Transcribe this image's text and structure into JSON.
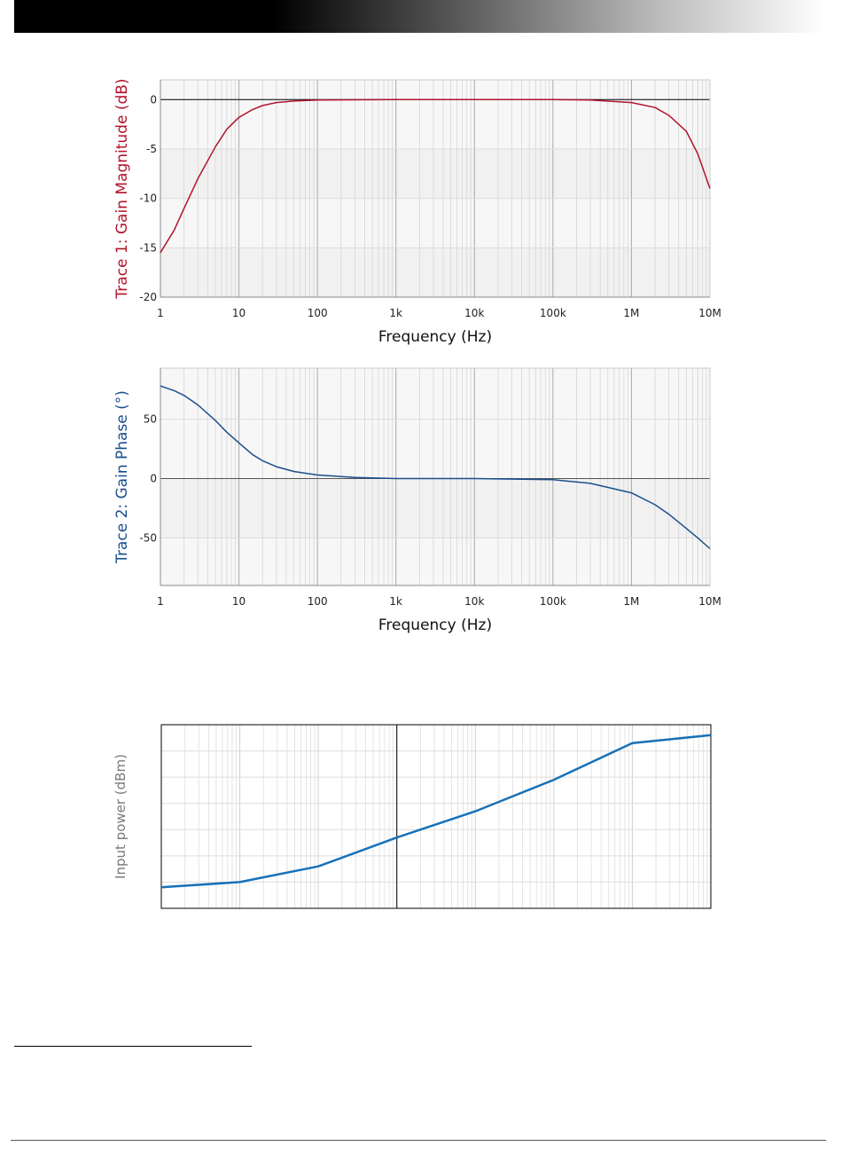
{
  "chart_data": [
    {
      "type": "line",
      "title": "",
      "xlabel": "Frequency (Hz)",
      "ylabel": "Trace 1: Gain Magnitude (dB)",
      "xscale": "log",
      "xlim": [
        1,
        10000000
      ],
      "ylim": [
        -20,
        2
      ],
      "xticks": [
        1,
        10,
        100,
        1000,
        10000,
        100000,
        1000000,
        10000000
      ],
      "xtick_labels": [
        "1",
        "10",
        "100",
        "1k",
        "10k",
        "100k",
        "1M",
        "10M"
      ],
      "yticks": [
        -20,
        -15,
        -10,
        -5,
        0
      ],
      "ytick_labels": [
        "-20",
        "-15",
        "-10",
        "-5",
        "0"
      ],
      "grid": true,
      "color": "#b0142b",
      "series": [
        {
          "x": [
            1,
            1.5,
            2,
            3,
            5,
            7,
            10,
            15,
            20,
            30,
            50,
            100,
            1000,
            10000,
            100000,
            300000,
            1000000,
            2000000,
            3000000,
            5000000,
            7000000,
            10000000
          ],
          "y": [
            -15.5,
            -13.2,
            -11,
            -8,
            -4.8,
            -3,
            -1.8,
            -1,
            -0.6,
            -0.3,
            -0.15,
            -0.05,
            0,
            0,
            0,
            -0.05,
            -0.3,
            -0.8,
            -1.6,
            -3.2,
            -5.5,
            -9
          ]
        }
      ]
    },
    {
      "type": "line",
      "title": "",
      "xlabel": "Frequency (Hz)",
      "ylabel": "Trace 2: Gain Phase (°)",
      "xscale": "log",
      "xlim": [
        1,
        10000000
      ],
      "ylim": [
        -90,
        93
      ],
      "xticks": [
        1,
        10,
        100,
        1000,
        10000,
        100000,
        1000000,
        10000000
      ],
      "xtick_labels": [
        "1",
        "10",
        "100",
        "1k",
        "10k",
        "100k",
        "1M",
        "10M"
      ],
      "yticks": [
        -50,
        0,
        50
      ],
      "ytick_labels": [
        "-50",
        "0",
        "50"
      ],
      "grid": true,
      "color": "#1a4f8c",
      "series": [
        {
          "x": [
            1,
            1.5,
            2,
            3,
            5,
            7,
            10,
            15,
            20,
            30,
            50,
            100,
            300,
            1000,
            10000,
            100000,
            300000,
            1000000,
            2000000,
            3000000,
            5000000,
            7000000,
            10000000
          ],
          "y": [
            78,
            74,
            70,
            62,
            49,
            39,
            30,
            20,
            15,
            10,
            6,
            3,
            1,
            0,
            0,
            -1,
            -4,
            -12,
            -22,
            -30,
            -42,
            -50,
            -59
          ]
        }
      ]
    },
    {
      "type": "line",
      "title": "",
      "xlabel": "",
      "ylabel": "Input power (dBm)",
      "xscale": "log",
      "xlim": [
        1,
        10000000
      ],
      "ylim": [
        0,
        7
      ],
      "grid": true,
      "color": "#1771b8",
      "series": [
        {
          "x": [
            1,
            10,
            100,
            1000,
            10000,
            100000,
            1000000,
            10000000
          ],
          "y": [
            0.8,
            1.0,
            1.6,
            2.7,
            3.7,
            4.9,
            6.3,
            6.6
          ]
        }
      ]
    }
  ]
}
